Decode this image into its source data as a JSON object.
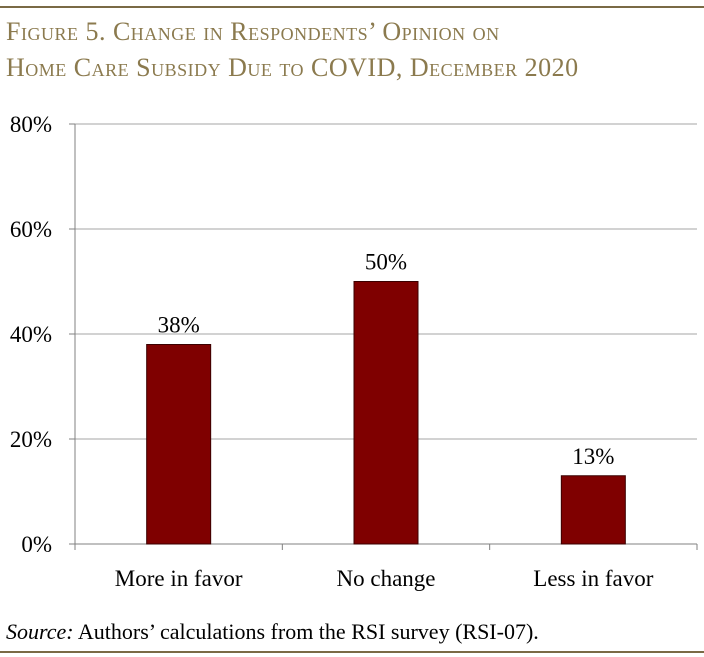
{
  "figure": {
    "title_line1": "Figure 5. Change in Respondents’ Opinion on",
    "title_line2": "Home Care Subsidy Due to COVID, December 2020",
    "source_label": "Source:",
    "source_text": " Authors’ calculations from the RSI survey (RSI-07)."
  },
  "colors": {
    "bar": "#7f0000",
    "grid": "#a6a6a6",
    "axis": "#808080",
    "title": "#8b7a4e",
    "rule": "#7a6a45"
  },
  "chart_data": {
    "type": "bar",
    "categories": [
      "More in favor",
      "No change",
      "Less in favor"
    ],
    "values": [
      38,
      50,
      13
    ],
    "value_labels": [
      "38%",
      "50%",
      "13%"
    ],
    "ytick_labels": [
      "0%",
      "20%",
      "40%",
      "60%",
      "80%"
    ],
    "ytick_values": [
      0,
      20,
      40,
      60,
      80
    ],
    "ylim": [
      0,
      80
    ],
    "grid": true,
    "title": "",
    "xlabel": "",
    "ylabel": ""
  }
}
